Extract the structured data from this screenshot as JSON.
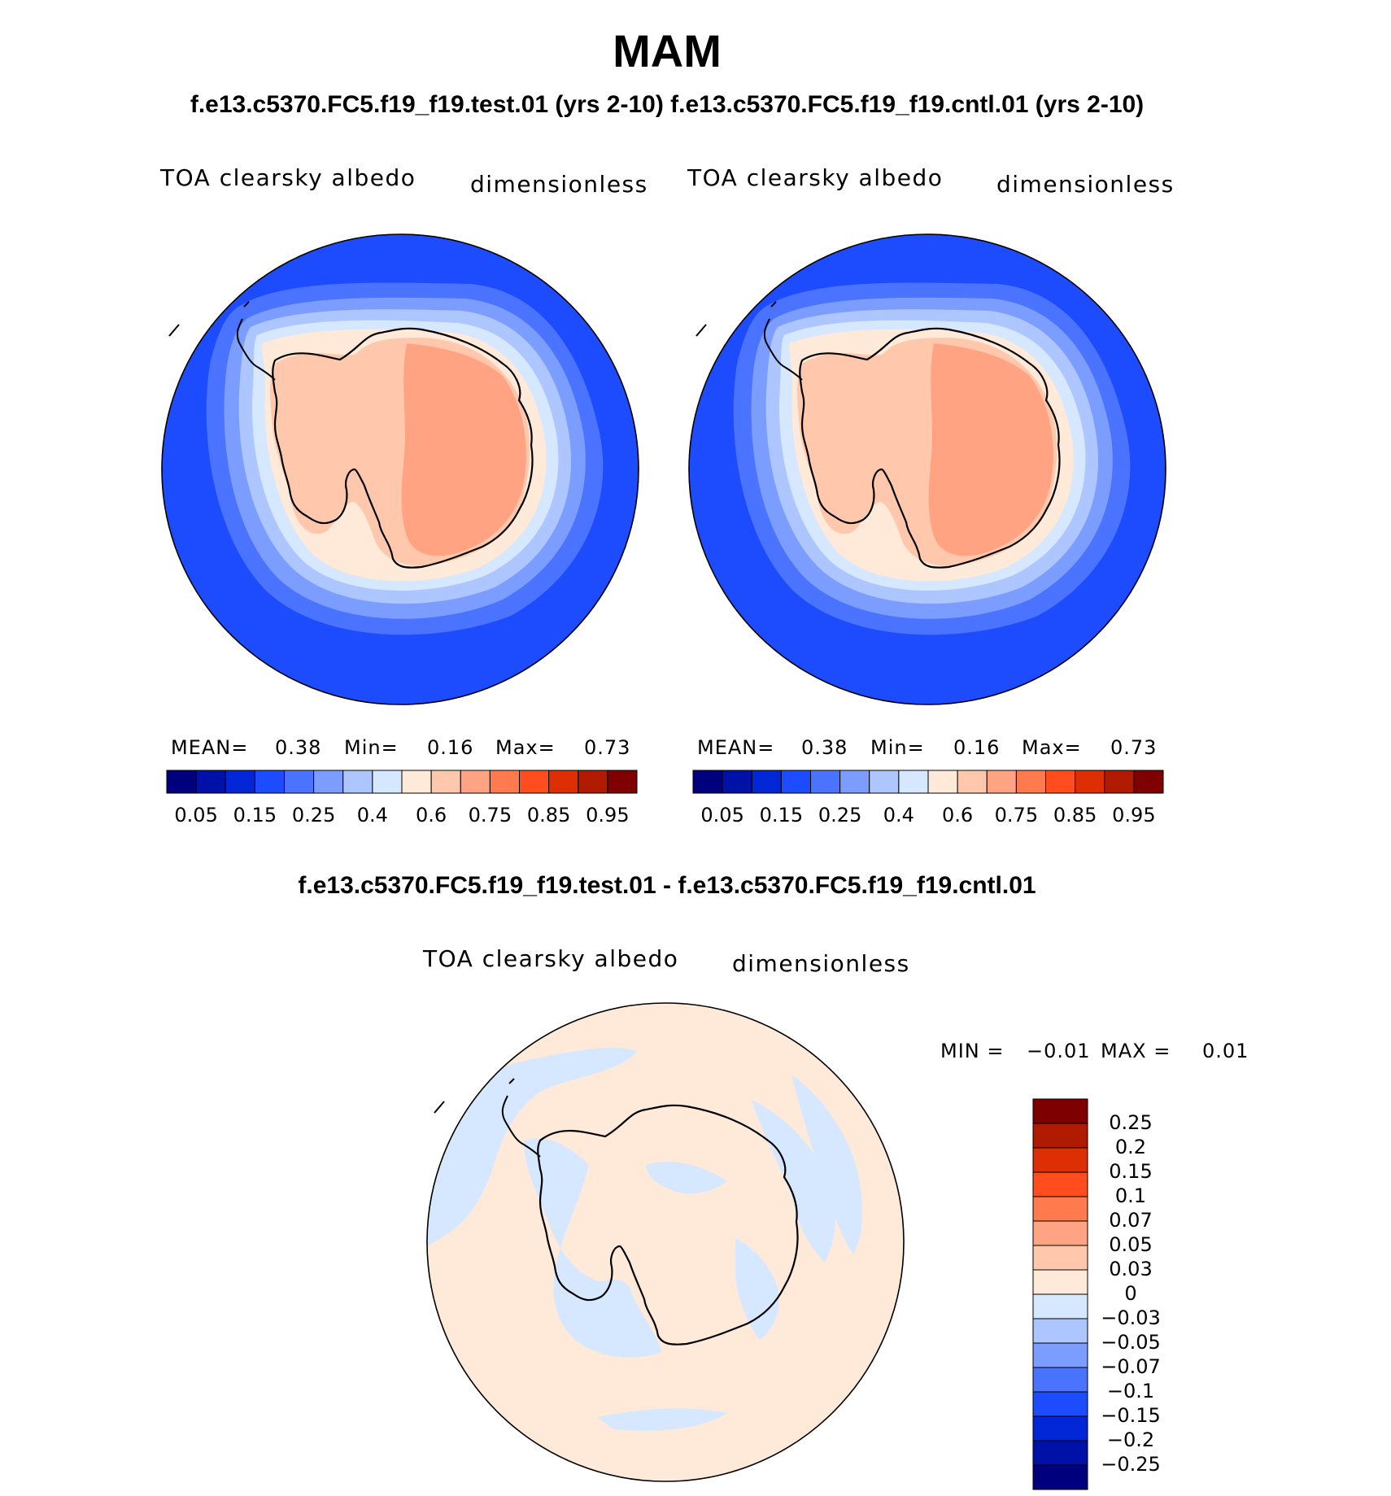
{
  "title": "MAM",
  "subtitle": "f.e13.c5370.FC5.f19_f19.test.01 (yrs 2-10) f.e13.c5370.FC5.f19_f19.cntl.01 (yrs 2-10)",
  "panels": [
    {
      "variable": "TOA clearsky albedo",
      "units": "dimensionless",
      "mean_label": "MEAN=",
      "mean": "0.38",
      "min_label": "Min=",
      "min": "0.16",
      "max_label": "Max=",
      "max": "0.73"
    },
    {
      "variable": "TOA clearsky albedo",
      "units": "dimensionless",
      "mean_label": "MEAN=",
      "mean": "0.38",
      "min_label": "Min=",
      "min": "0.16",
      "max_label": "Max=",
      "max": "0.73"
    }
  ],
  "colorbar": {
    "colors": [
      "#00007f",
      "#0011a8",
      "#0026d6",
      "#1d4cff",
      "#4a73ff",
      "#7b9dff",
      "#adc6ff",
      "#d6e8ff",
      "#ffe9d9",
      "#ffc8ad",
      "#ffa382",
      "#ff7a4d",
      "#ff4d1d",
      "#de2e03",
      "#b01b00",
      "#7f0000"
    ],
    "tick_labels": [
      "0.05",
      "0.15",
      "0.25",
      "0.4",
      "0.6",
      "0.75",
      "0.85",
      "0.95"
    ]
  },
  "difference": {
    "title": "f.e13.c5370.FC5.f19_f19.test.01 - f.e13.c5370.FC5.f19_f19.cntl.01",
    "variable": "TOA clearsky albedo",
    "units": "dimensionless",
    "min_label": "MIN =",
    "min": "−0.01",
    "max_label": "MAX =",
    "max": "0.01",
    "colorbar": {
      "colors": [
        "#7f0000",
        "#b01b00",
        "#de2e03",
        "#ff4d1d",
        "#ff7a4d",
        "#ffa382",
        "#ffc8ad",
        "#ffe9d9",
        "#d6e8ff",
        "#adc6ff",
        "#7b9dff",
        "#4a73ff",
        "#1d4cff",
        "#0026d6",
        "#0011a8",
        "#00007f"
      ],
      "tick_labels": [
        "0.25",
        "0.2",
        "0.15",
        "0.1",
        "0.07",
        "0.05",
        "0.03",
        "0",
        "−0.03",
        "−0.05",
        "−0.07",
        "−0.1",
        "−0.15",
        "−0.2",
        "−0.25"
      ]
    }
  }
}
